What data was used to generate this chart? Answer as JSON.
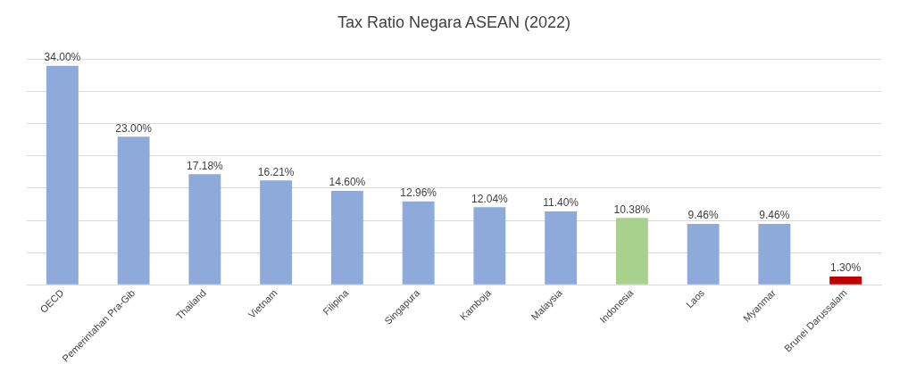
{
  "chart_data": {
    "type": "bar",
    "title": "Tax Ratio Negara ASEAN (2022)",
    "categories": [
      "OECD",
      "Pemerintahan Pra-Gib",
      "Thailand",
      "Vietnam",
      "Filipina",
      "Singapura",
      "Kamboja",
      "Malaysia",
      "Indonesia",
      "Laos",
      "Myanmar",
      "Brunei Darussalam"
    ],
    "values": [
      34.0,
      23.0,
      17.18,
      16.21,
      14.6,
      12.96,
      12.04,
      11.4,
      10.38,
      9.46,
      9.46,
      1.3
    ],
    "value_labels": [
      "34.00%",
      "23.00%",
      "17.18%",
      "16.21%",
      "14.60%",
      "12.96%",
      "12.04%",
      "11.40%",
      "10.38%",
      "9.46%",
      "9.46%",
      "1.30%"
    ],
    "colors": [
      "#8eaadb",
      "#8eaadb",
      "#8eaadb",
      "#8eaadb",
      "#8eaadb",
      "#8eaadb",
      "#8eaadb",
      "#8eaadb",
      "#a9d18e",
      "#8eaadb",
      "#8eaadb",
      "#c00000"
    ],
    "ylim": [
      0,
      35
    ],
    "yticks": [
      {
        "value": 0,
        "label": null
      },
      {
        "value": 5,
        "label": null
      },
      {
        "value": 10,
        "label": null
      },
      {
        "value": 15,
        "label": null
      },
      {
        "value": 20,
        "label": null
      },
      {
        "value": 25,
        "label": null
      },
      {
        "value": 30,
        "label": null
      },
      {
        "value": 35,
        "label": null
      }
    ],
    "grid": "y",
    "legend": false,
    "tick_labels": "x"
  }
}
